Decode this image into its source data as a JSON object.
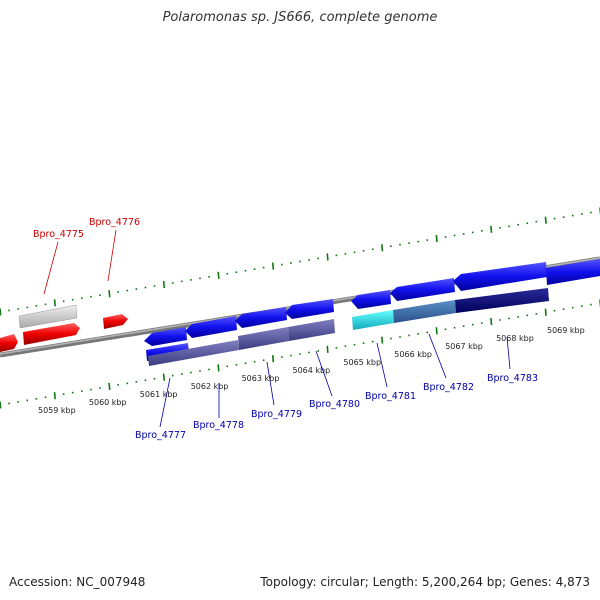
{
  "title": "Polaromonas sp. JS666, complete genome",
  "footer": {
    "accession": "Accession: NC_007948",
    "summary": "Topology: circular; Length: 5,200,264 bp; Genes: 4,873"
  },
  "colors": {
    "forward_gene_label": "#cc0000",
    "reverse_gene_label": "#0000aa",
    "tick": "#117711",
    "backbone": "#888888"
  },
  "ticks": [
    {
      "label": "5059 kbp"
    },
    {
      "label": "5060 kbp"
    },
    {
      "label": "5061 kbp"
    },
    {
      "label": "5062 kbp"
    },
    {
      "label": "5063 kbp"
    },
    {
      "label": "5064 kbp"
    },
    {
      "label": "5065 kbp"
    },
    {
      "label": "5066 kbp"
    },
    {
      "label": "5067 kbp"
    },
    {
      "label": "5068 kbp"
    },
    {
      "label": "5069 kbp"
    }
  ],
  "gene_labels": [
    {
      "text": "Bpro_4775",
      "strand": "forward"
    },
    {
      "text": "Bpro_4776",
      "strand": "forward"
    },
    {
      "text": "Bpro_4777",
      "strand": "reverse"
    },
    {
      "text": "Bpro_4778",
      "strand": "reverse"
    },
    {
      "text": "Bpro_4779",
      "strand": "reverse"
    },
    {
      "text": "Bpro_4780",
      "strand": "reverse"
    },
    {
      "text": "Bpro_4781",
      "strand": "reverse"
    },
    {
      "text": "Bpro_4782",
      "strand": "reverse"
    },
    {
      "text": "Bpro_4783",
      "strand": "reverse"
    }
  ]
}
